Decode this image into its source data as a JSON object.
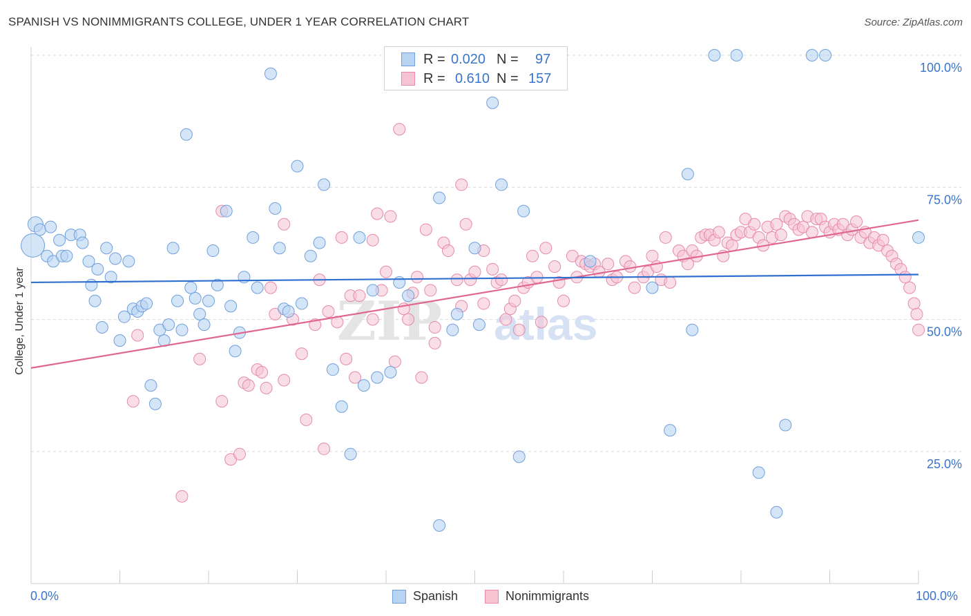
{
  "header": {
    "title": "SPANISH VS NONIMMIGRANTS COLLEGE, UNDER 1 YEAR CORRELATION CHART",
    "source": "Source: ZipAtlas.com"
  },
  "colors": {
    "spanish_fill": "#b9d3f3",
    "spanish_stroke": "#6f9fdc",
    "spanish_line": "#2f6fd0",
    "nonimm_fill": "#f6c3d3",
    "nonimm_stroke": "#e58aa8",
    "nonimm_line": "#e06690",
    "axis_label": "#3b74c9",
    "grid": "#d8d8d8"
  },
  "legend_top": {
    "rows": [
      {
        "r_label": "R =",
        "r_value": "0.020",
        "n_label": "N =",
        "n_value": "97"
      },
      {
        "r_label": "R =",
        "r_value": "0.610",
        "n_label": "N =",
        "n_value": "157"
      }
    ]
  },
  "legend_bottom": {
    "spanish": "Spanish",
    "nonimmigrants": "Nonimmigrants"
  },
  "watermark": {
    "zip": "ZIP",
    "atlas": "atlas"
  },
  "chart_data": {
    "type": "scatter",
    "title": "SPANISH VS NONIMMIGRANTS COLLEGE, UNDER 1 YEAR CORRELATION CHART",
    "xlabel": "",
    "ylabel": "College, Under 1 year",
    "xlim": [
      0,
      100
    ],
    "ylim": [
      0,
      100
    ],
    "x_tick_labels": [
      "0.0%",
      "100.0%"
    ],
    "y_ticks": [
      {
        "value": 25,
        "label": "25.0%"
      },
      {
        "value": 50,
        "label": "50.0%"
      },
      {
        "value": 75,
        "label": "75.0%"
      },
      {
        "value": 100,
        "label": "100.0%"
      }
    ],
    "grid": "horizontal dashed",
    "legend_position": "top-center",
    "series": [
      {
        "name": "Spanish",
        "R": 0.02,
        "N": 97,
        "trend": [
          [
            0,
            57.0
          ],
          [
            100,
            58.5
          ]
        ],
        "points": [
          [
            0.2,
            64
          ],
          [
            0.5,
            68
          ],
          [
            1,
            67
          ],
          [
            2.2,
            67.5
          ],
          [
            1.8,
            62
          ],
          [
            2.5,
            61
          ],
          [
            3.2,
            65
          ],
          [
            3.5,
            62
          ],
          [
            4,
            62
          ],
          [
            4.5,
            66
          ],
          [
            5.5,
            66
          ],
          [
            5.8,
            64.5
          ],
          [
            6.5,
            61
          ],
          [
            6.8,
            56.5
          ],
          [
            7.2,
            53.5
          ],
          [
            7.5,
            59.5
          ],
          [
            8,
            48.5
          ],
          [
            8.5,
            63.5
          ],
          [
            9,
            58
          ],
          [
            9.5,
            61.5
          ],
          [
            10,
            46
          ],
          [
            10.5,
            50.5
          ],
          [
            11,
            61
          ],
          [
            11.5,
            52
          ],
          [
            12,
            51.5
          ],
          [
            12.5,
            52.5
          ],
          [
            13,
            53
          ],
          [
            13.5,
            37.5
          ],
          [
            14,
            34
          ],
          [
            14.5,
            48
          ],
          [
            15,
            46
          ],
          [
            15.5,
            49
          ],
          [
            16,
            63.5
          ],
          [
            16.5,
            53.5
          ],
          [
            17,
            48
          ],
          [
            17.5,
            85
          ],
          [
            18,
            56
          ],
          [
            18.5,
            54
          ],
          [
            19,
            51
          ],
          [
            19.5,
            49
          ],
          [
            20,
            53.5
          ],
          [
            20.5,
            63
          ],
          [
            21,
            56.5
          ],
          [
            22,
            70.5
          ],
          [
            22.5,
            52.5
          ],
          [
            23,
            44
          ],
          [
            23.5,
            47.5
          ],
          [
            24,
            58
          ],
          [
            25,
            65.5
          ],
          [
            25.5,
            56
          ],
          [
            27,
            96.5
          ],
          [
            27.5,
            71
          ],
          [
            28,
            63.5
          ],
          [
            28.5,
            52
          ],
          [
            29,
            51.5
          ],
          [
            30,
            79
          ],
          [
            30.5,
            53
          ],
          [
            31.5,
            62
          ],
          [
            32.5,
            64.5
          ],
          [
            33,
            75.5
          ],
          [
            34,
            40.5
          ],
          [
            35,
            33.5
          ],
          [
            36,
            24.5
          ],
          [
            37,
            65.5
          ],
          [
            37.5,
            37.5
          ],
          [
            38.5,
            55.5
          ],
          [
            39,
            39
          ],
          [
            40.5,
            40
          ],
          [
            41.5,
            57
          ],
          [
            42.5,
            54.5
          ],
          [
            46,
            73
          ],
          [
            46,
            11
          ],
          [
            47.5,
            48
          ],
          [
            48,
            51
          ],
          [
            50,
            63.5
          ],
          [
            50.5,
            49
          ],
          [
            52,
            91
          ],
          [
            53,
            75.5
          ],
          [
            55,
            24
          ],
          [
            55.5,
            70.5
          ],
          [
            63,
            61
          ],
          [
            70,
            56
          ],
          [
            72,
            29
          ],
          [
            74,
            77.5
          ],
          [
            74.5,
            48
          ],
          [
            77,
            100
          ],
          [
            79.5,
            100
          ],
          [
            82,
            21
          ],
          [
            84,
            13.5
          ],
          [
            85,
            30
          ],
          [
            88,
            100
          ],
          [
            89.5,
            100
          ],
          [
            100,
            65.5
          ]
        ]
      },
      {
        "name": "Nonimmigrants",
        "R": 0.61,
        "N": 157,
        "trend": [
          [
            0,
            40.8
          ],
          [
            100,
            68.8
          ]
        ],
        "points": [
          [
            11.5,
            34.5
          ],
          [
            12,
            47
          ],
          [
            17,
            16.5
          ],
          [
            19,
            42.5
          ],
          [
            21.5,
            70.5
          ],
          [
            21.5,
            34.5
          ],
          [
            22.5,
            23.5
          ],
          [
            23.5,
            24.5
          ],
          [
            24,
            38
          ],
          [
            24.5,
            37.5
          ],
          [
            25.5,
            40.5
          ],
          [
            26,
            40
          ],
          [
            26.5,
            37
          ],
          [
            27,
            56
          ],
          [
            27.5,
            51
          ],
          [
            28.5,
            38.5
          ],
          [
            28.5,
            68
          ],
          [
            29.5,
            50
          ],
          [
            30.5,
            43.5
          ],
          [
            31,
            31
          ],
          [
            32,
            49
          ],
          [
            32.5,
            57.5
          ],
          [
            33,
            25.5
          ],
          [
            33.5,
            51.5
          ],
          [
            34.5,
            49.5
          ],
          [
            35,
            65.5
          ],
          [
            35.5,
            42.5
          ],
          [
            36,
            54.5
          ],
          [
            36.5,
            39
          ],
          [
            37,
            54.5
          ],
          [
            38.5,
            65
          ],
          [
            38.5,
            50
          ],
          [
            39,
            70
          ],
          [
            39.5,
            55.5
          ],
          [
            40,
            59
          ],
          [
            40.5,
            69.5
          ],
          [
            41,
            42
          ],
          [
            41.5,
            86
          ],
          [
            42,
            52
          ],
          [
            42.5,
            50
          ],
          [
            43,
            55
          ],
          [
            43.5,
            58
          ],
          [
            44,
            39
          ],
          [
            44.5,
            67
          ],
          [
            45,
            55.5
          ],
          [
            45.5,
            48.5
          ],
          [
            45.5,
            45.5
          ],
          [
            46.5,
            64.5
          ],
          [
            47,
            63
          ],
          [
            48,
            57.5
          ],
          [
            48.5,
            75.5
          ],
          [
            48.5,
            52.5
          ],
          [
            49,
            68
          ],
          [
            49.5,
            57.5
          ],
          [
            50,
            59
          ],
          [
            51,
            63
          ],
          [
            51,
            53
          ],
          [
            52,
            59.5
          ],
          [
            52.5,
            57
          ],
          [
            53,
            57.5
          ],
          [
            53.5,
            50
          ],
          [
            54,
            52
          ],
          [
            54.5,
            53.5
          ],
          [
            55,
            48
          ],
          [
            55.5,
            56
          ],
          [
            56,
            57
          ],
          [
            56.5,
            62
          ],
          [
            57,
            58
          ],
          [
            57.5,
            49.5
          ],
          [
            58,
            63.5
          ],
          [
            59,
            60
          ],
          [
            59.5,
            57
          ],
          [
            60,
            53.5
          ],
          [
            61,
            62
          ],
          [
            61.5,
            58
          ],
          [
            62,
            61
          ],
          [
            62.5,
            60.5
          ],
          [
            63,
            60
          ],
          [
            63.5,
            60.5
          ],
          [
            64,
            59
          ],
          [
            65,
            60.5
          ],
          [
            65.5,
            57.5
          ],
          [
            66,
            58
          ],
          [
            67,
            61
          ],
          [
            67.5,
            60
          ],
          [
            68,
            56
          ],
          [
            69,
            58
          ],
          [
            69.5,
            59
          ],
          [
            70,
            62
          ],
          [
            70.5,
            60
          ],
          [
            71,
            57.5
          ],
          [
            71.5,
            65.5
          ],
          [
            72,
            57
          ],
          [
            73,
            63
          ],
          [
            73.5,
            62
          ],
          [
            74,
            60.5
          ],
          [
            74.5,
            63
          ],
          [
            75,
            62
          ],
          [
            75.5,
            65.5
          ],
          [
            76,
            66
          ],
          [
            76.5,
            66
          ],
          [
            77,
            65
          ],
          [
            77.5,
            66.5
          ],
          [
            78,
            62
          ],
          [
            78.5,
            64.5
          ],
          [
            79,
            64
          ],
          [
            79.5,
            66
          ],
          [
            80,
            66.5
          ],
          [
            80.5,
            69
          ],
          [
            81,
            66.5
          ],
          [
            81.5,
            68
          ],
          [
            82,
            65.5
          ],
          [
            82.5,
            64
          ],
          [
            83,
            67.5
          ],
          [
            83.5,
            65.5
          ],
          [
            84,
            68
          ],
          [
            84.5,
            66
          ],
          [
            85,
            69.5
          ],
          [
            85.5,
            69
          ],
          [
            86,
            68
          ],
          [
            86.5,
            67
          ],
          [
            87,
            67.5
          ],
          [
            87.5,
            69.5
          ],
          [
            88,
            66.5
          ],
          [
            88.5,
            69
          ],
          [
            89,
            69
          ],
          [
            89.5,
            67.5
          ],
          [
            90,
            66.5
          ],
          [
            90.5,
            68
          ],
          [
            91,
            67
          ],
          [
            91.5,
            68
          ],
          [
            92,
            66
          ],
          [
            92.5,
            67
          ],
          [
            93,
            68.5
          ],
          [
            93.5,
            65.5
          ],
          [
            94,
            66.5
          ],
          [
            94.5,
            64.5
          ],
          [
            95,
            65.5
          ],
          [
            95.5,
            64
          ],
          [
            96,
            65
          ],
          [
            96.5,
            63
          ],
          [
            97,
            62
          ],
          [
            97.5,
            60.5
          ],
          [
            98,
            59.5
          ],
          [
            98.5,
            58
          ],
          [
            99,
            56
          ],
          [
            99.5,
            53
          ],
          [
            99.8,
            51
          ],
          [
            100,
            48
          ]
        ]
      }
    ]
  }
}
